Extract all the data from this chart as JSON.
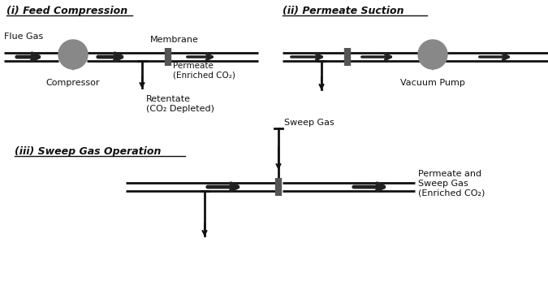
{
  "bg_color": "#ffffff",
  "line_color": "#111111",
  "arrow_color": "#222222",
  "pump_color": "#888888",
  "membrane_color": "#555555",
  "title_i": "(i) Feed Compression",
  "title_ii": "(ii) Permeate Suction",
  "title_iii": "(iii) Sweep Gas Operation",
  "label_flue_gas": "Flue Gas",
  "label_membrane_i": "Membrane",
  "label_compressor": "Compressor",
  "label_permeate_i": "Permeate\n(Enriched CO₂)",
  "label_retentate": "Retentate\n(CO₂ Depleted)",
  "label_vacuum_pump": "Vacuum Pump",
  "label_sweep_gas": "Sweep Gas",
  "label_permeate_iii": "Permeate and\nSweep Gas\n(Enriched CO₂)"
}
